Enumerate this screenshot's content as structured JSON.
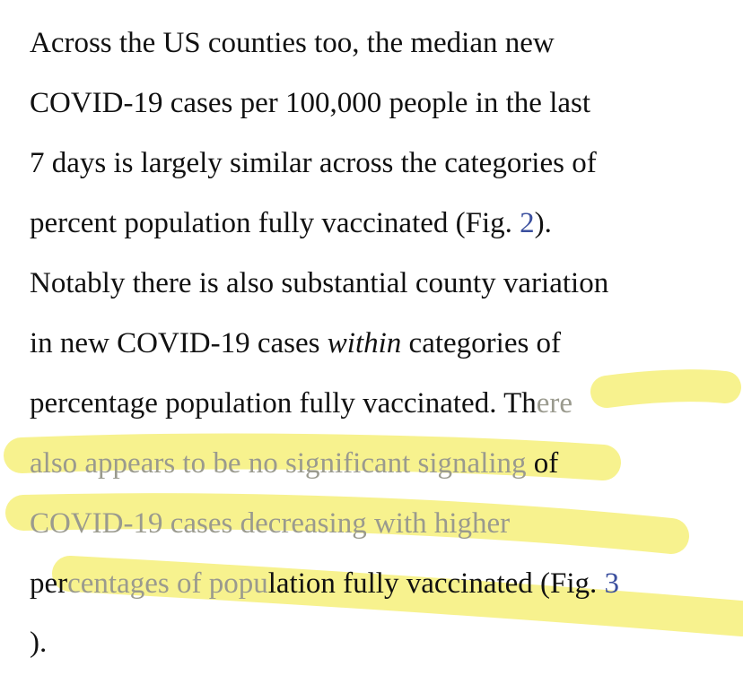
{
  "paragraph": {
    "l1": "Across the US counties too, the median new",
    "l2": "COVID-19 cases per 100,000 people in the last",
    "l3": "7 days is largely similar across the categories of",
    "l4_a": "percent population fully vaccinated (Fig. ",
    "l4_ref": "2",
    "l4_b": ").",
    "l5": "Notably there is also substantial county variation",
    "l6_a": "in new COVID-19 cases ",
    "l6_em": "within",
    "l6_b": " categories of",
    "l7_a": "percentage population fully vaccinated. Th",
    "l7_b": "ere",
    "l8_a": "also appears to be no significant signaling",
    "l8_b": " of",
    "l9_a": "COVID-19 cases ",
    "l9_b": "decreasing with higher",
    "l10_a": "per",
    "l10_b": "centages of popu",
    "l10_c": "lation fully vaccinated (Fig. ",
    "l10_ref": "3",
    "l11": ")."
  },
  "colors": {
    "highlight": "#f6f07a",
    "reference_link": "#3b4f9e",
    "faded_text": "#9a9a8e"
  }
}
